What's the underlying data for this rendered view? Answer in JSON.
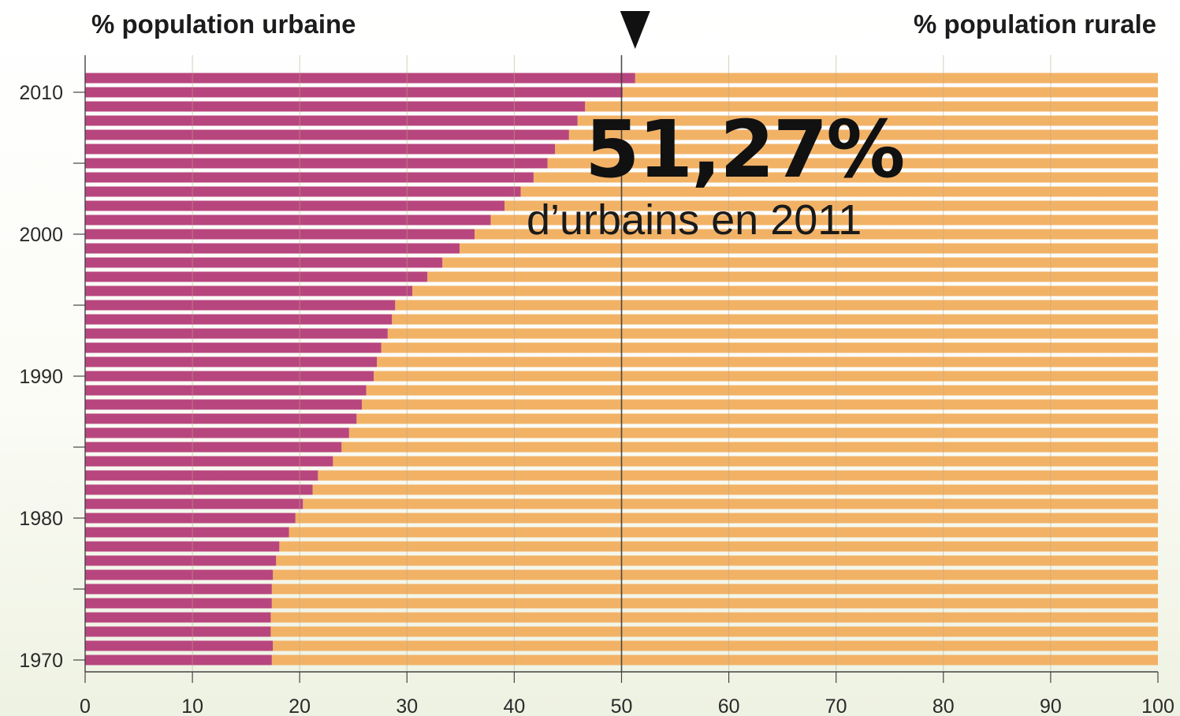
{
  "chart_data": {
    "type": "bar",
    "orientation": "horizontal",
    "stacked": true,
    "title_left": "% population urbaine",
    "title_right": "% population rurale",
    "highlight": {
      "value_label": "51,27%",
      "subtitle": "d’urbains en 2011",
      "marker_value": 51.27
    },
    "years": [
      1970,
      1971,
      1972,
      1973,
      1974,
      1975,
      1976,
      1977,
      1978,
      1979,
      1980,
      1981,
      1982,
      1983,
      1984,
      1985,
      1986,
      1987,
      1988,
      1989,
      1990,
      1991,
      1992,
      1993,
      1994,
      1995,
      1996,
      1997,
      1998,
      1999,
      2000,
      2001,
      2002,
      2003,
      2004,
      2005,
      2006,
      2007,
      2008,
      2009,
      2010,
      2011
    ],
    "series": [
      {
        "color": "#b8467e",
        "values": [
          17.4,
          17.5,
          17.3,
          17.3,
          17.4,
          17.4,
          17.5,
          17.8,
          18.1,
          19.0,
          19.6,
          20.3,
          21.2,
          21.7,
          23.1,
          23.9,
          24.6,
          25.3,
          25.8,
          26.2,
          26.9,
          27.2,
          27.6,
          28.2,
          28.6,
          28.9,
          30.5,
          31.9,
          33.3,
          34.9,
          36.3,
          37.8,
          39.1,
          40.6,
          41.8,
          43.1,
          43.8,
          45.1,
          45.9,
          46.6,
          50.1,
          51.27
        ]
      },
      {
        "color": "#f2b266",
        "complement_of_total": 100
      }
    ],
    "xlim": [
      0,
      100
    ],
    "xticks": [
      "0",
      "10",
      "20",
      "30",
      "40",
      "50",
      "60",
      "70",
      "80",
      "90",
      "100"
    ],
    "yticks": [
      "1970",
      "1980",
      "1990",
      "2000",
      "2010"
    ],
    "grid": true,
    "reference_line": 50
  }
}
